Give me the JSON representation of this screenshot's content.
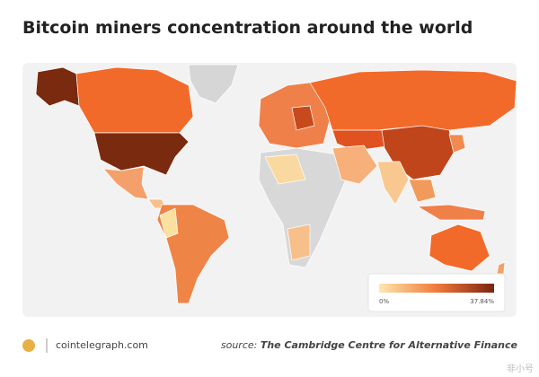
{
  "header": {
    "title": "Bitcoin miners concentration around the world"
  },
  "legend": {
    "min_label": "0%",
    "max_label": "37.84%"
  },
  "footer": {
    "brand": "cointelegraph.com",
    "source_prefix": "source:",
    "source": "The Cambridge Centre for Alternative Finance",
    "watermark": "非小号"
  }
}
